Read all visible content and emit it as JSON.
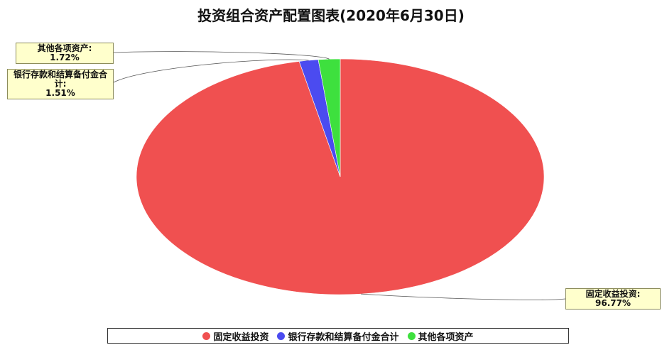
{
  "chart_data": {
    "type": "pie",
    "title": "投资组合资产配置图表(2020年6月30日)",
    "slices": [
      {
        "name": "固定收益投资",
        "value": 96.77,
        "label": "固定收益投资:",
        "pct": "96.77%",
        "color": "#f05050"
      },
      {
        "name": "银行存款和结算备付金合计",
        "value": 1.51,
        "label": "银行存款和结算备付金合计:",
        "pct": "1.51%",
        "color": "#4b4bf0"
      },
      {
        "name": "其他各项资产",
        "value": 1.72,
        "label": "其他各项资产:",
        "pct": "1.72%",
        "color": "#3ee03e"
      }
    ],
    "legend_position": "bottom",
    "legend": [
      "固定收益投资",
      "银行存款和结算备付金合计",
      "其他各项资产"
    ]
  }
}
